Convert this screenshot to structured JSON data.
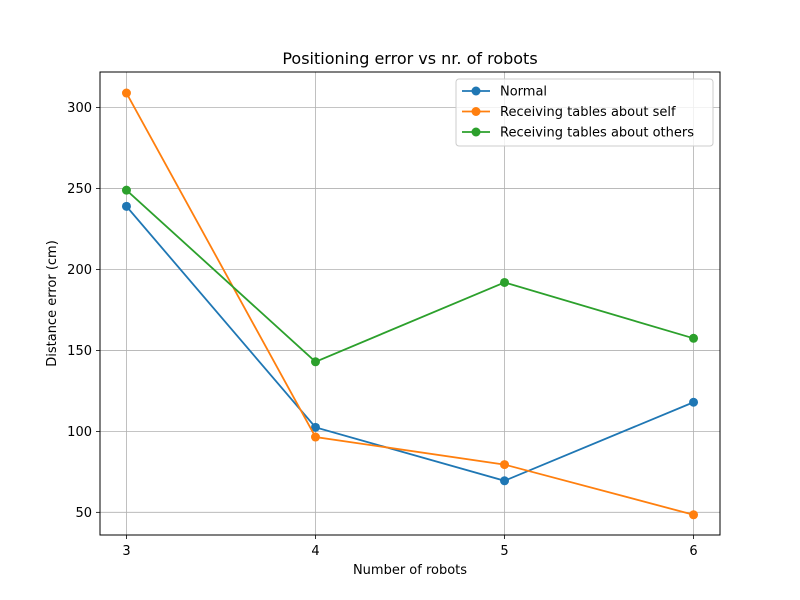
{
  "chart_data": {
    "type": "line",
    "title": "Positioning error vs nr. of robots",
    "xlabel": "Number of robots",
    "ylabel": "Distance error (cm)",
    "x": [
      3,
      4,
      5,
      6
    ],
    "xticks": [
      "3",
      "4",
      "5",
      "6"
    ],
    "yticks": [
      "50",
      "100",
      "150",
      "200",
      "250",
      "300"
    ],
    "xlim": [
      2.86,
      6.14
    ],
    "ylim": [
      36,
      322
    ],
    "grid": true,
    "legend_position": "top-right",
    "series": [
      {
        "name": "Normal",
        "color": "#1f77b4",
        "values": [
          239,
          102.5,
          69.5,
          118
        ]
      },
      {
        "name": "Receiving tables about self",
        "color": "#ff7f0e",
        "values": [
          309,
          96.5,
          79.5,
          48.5
        ]
      },
      {
        "name": "Receiving tables about others",
        "color": "#2ca02c",
        "values": [
          249,
          143,
          192,
          157.5
        ]
      }
    ]
  }
}
